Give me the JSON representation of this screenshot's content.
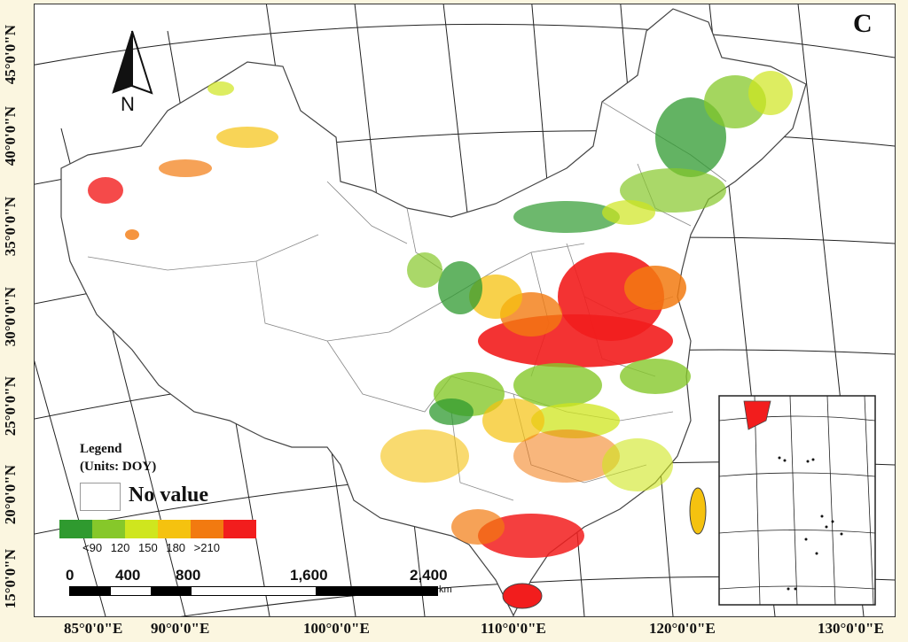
{
  "panel_label": "C",
  "north_arrow": {
    "letter": "N"
  },
  "latitude_labels": [
    "45°0'0\"N",
    "40°0'0\"N",
    "35°0'0\"N",
    "30°0'0\"N",
    "25°0'0\"N",
    "20°0'0\"N",
    "15°0'0\"N"
  ],
  "longitude_labels": [
    "85°0'0\"E",
    "90°0'0\"E",
    "100°0'0\"E",
    "110°0'0\"E",
    "120°0'0\"E",
    "130°0'0\"E"
  ],
  "legend": {
    "title_line1": "Legend",
    "title_line2": "(Units: DOY)",
    "no_value_label": "No value",
    "colors": [
      "#2f9a2f",
      "#86c82a",
      "#cfe61e",
      "#f5c20f",
      "#f27a10",
      "#f21d1d"
    ],
    "ticks": [
      "<90",
      "120",
      "150",
      "180",
      ">210"
    ]
  },
  "scale_bar": {
    "labels": [
      "0",
      "400",
      "800",
      "1,600",
      "2,400"
    ],
    "unit": "km"
  }
}
